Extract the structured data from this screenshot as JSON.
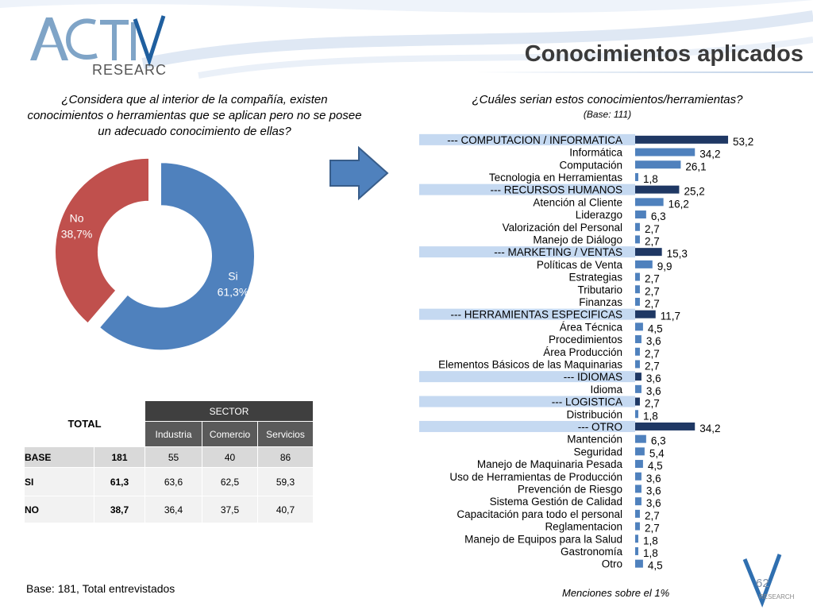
{
  "slide": {
    "title": "Conocimientos aplicados",
    "logo_word_main": "ACTIVA",
    "logo_word_sub": "RESEARCH",
    "page_number": "62",
    "mini_logo_text": "RESEARCH"
  },
  "left_question": {
    "text": "¿Considera que al interior de la compañía, existen conocimientos o herramientas que se aplican pero no se posee un adecuado conocimiento de ellas?"
  },
  "right_question": {
    "text": "¿Cuáles serian estos conocimientos/herramientas?",
    "base": "(Base: 111)"
  },
  "colors": {
    "si": "#4f81bd",
    "no": "#c0504d",
    "bar_dark": "#1f3864",
    "bar_light": "#4f81bd",
    "category_band": "#c5d9f1",
    "arrow_fill": "#4f81bd",
    "arrow_stroke": "#385d8a"
  },
  "table": {
    "total_label": "TOTAL",
    "sector_label": "SECTOR",
    "columns": [
      "Industria",
      "Comercio",
      "Servicios"
    ],
    "rows": [
      {
        "label": "BASE",
        "total": "181",
        "values": [
          "55",
          "40",
          "86"
        ]
      },
      {
        "label": "SI",
        "total": "61,3",
        "values": [
          "63,6",
          "62,5",
          "59,3"
        ]
      },
      {
        "label": "NO",
        "total": "38,7",
        "values": [
          "36,4",
          "37,5",
          "40,7"
        ]
      }
    ]
  },
  "footnotes": {
    "left": "Base: 181, Total entrevistados",
    "right": "Menciones sobre el 1%"
  },
  "chart_data": [
    {
      "type": "pie",
      "variant": "donut",
      "slices": [
        {
          "name": "Si",
          "value": 61.3,
          "label": "61,3%"
        },
        {
          "name": "No",
          "value": 38.7,
          "label": "38,7%"
        }
      ]
    },
    {
      "type": "bar",
      "orientation": "horizontal",
      "categories": [
        {
          "label": "--- COMPUTACION / INFORMATICA",
          "value": 53.2,
          "display": "53,2",
          "category": true
        },
        {
          "label": "Informática",
          "value": 34.2,
          "display": "34,2",
          "category": false
        },
        {
          "label": "Computación",
          "value": 26.1,
          "display": "26,1",
          "category": false
        },
        {
          "label": "Tecnologia en Herramientas",
          "value": 1.8,
          "display": "1,8",
          "category": false
        },
        {
          "label": "--- RECURSOS HUMANOS",
          "value": 25.2,
          "display": "25,2",
          "category": true
        },
        {
          "label": "Atención al Cliente",
          "value": 16.2,
          "display": "16,2",
          "category": false
        },
        {
          "label": "Liderazgo",
          "value": 6.3,
          "display": "6,3",
          "category": false
        },
        {
          "label": "Valorización del Personal",
          "value": 2.7,
          "display": "2,7",
          "category": false
        },
        {
          "label": "Manejo de Diálogo",
          "value": 2.7,
          "display": "2,7",
          "category": false
        },
        {
          "label": "--- MARKETING / VENTAS",
          "value": 15.3,
          "display": "15,3",
          "category": true
        },
        {
          "label": "Políticas de Venta",
          "value": 9.9,
          "display": "9,9",
          "category": false
        },
        {
          "label": "Estrategias",
          "value": 2.7,
          "display": "2,7",
          "category": false
        },
        {
          "label": "Tributario",
          "value": 2.7,
          "display": "2,7",
          "category": false
        },
        {
          "label": "Finanzas",
          "value": 2.7,
          "display": "2,7",
          "category": false
        },
        {
          "label": "--- HERRAMIENTAS ESPECIFICAS",
          "value": 11.7,
          "display": "11,7",
          "category": true
        },
        {
          "label": "Área Técnica",
          "value": 4.5,
          "display": "4,5",
          "category": false
        },
        {
          "label": "Procedimientos",
          "value": 3.6,
          "display": "3,6",
          "category": false
        },
        {
          "label": "Área Producción",
          "value": 2.7,
          "display": "2,7",
          "category": false
        },
        {
          "label": "Elementos Básicos de las Maquinarias",
          "value": 2.7,
          "display": "2,7",
          "category": false
        },
        {
          "label": "--- IDIOMAS",
          "value": 3.6,
          "display": "3,6",
          "category": true
        },
        {
          "label": "Idioma",
          "value": 3.6,
          "display": "3,6",
          "category": false
        },
        {
          "label": "--- LOGISTICA",
          "value": 2.7,
          "display": "2,7",
          "category": true
        },
        {
          "label": "Distribución",
          "value": 1.8,
          "display": "1,8",
          "category": false
        },
        {
          "label": "--- OTRO",
          "value": 34.2,
          "display": "34,2",
          "category": true
        },
        {
          "label": "Mantención",
          "value": 6.3,
          "display": "6,3",
          "category": false
        },
        {
          "label": "Seguridad",
          "value": 5.4,
          "display": "5,4",
          "category": false
        },
        {
          "label": "Manejo de Maquinaria Pesada",
          "value": 4.5,
          "display": "4,5",
          "category": false
        },
        {
          "label": "Uso de Herramientas de Producción",
          "value": 3.6,
          "display": "3,6",
          "category": false
        },
        {
          "label": "Prevención de Riesgo",
          "value": 3.6,
          "display": "3,6",
          "category": false
        },
        {
          "label": "Sistema Gestión de Calidad",
          "value": 3.6,
          "display": "3,6",
          "category": false
        },
        {
          "label": "Capacitación para todo el personal",
          "value": 2.7,
          "display": "2,7",
          "category": false
        },
        {
          "label": "Reglamentacion",
          "value": 2.7,
          "display": "2,7",
          "category": false
        },
        {
          "label": "Manejo de Equipos para la Salud",
          "value": 1.8,
          "display": "1,8",
          "category": false
        },
        {
          "label": "Gastronomía",
          "value": 1.8,
          "display": "1,8",
          "category": false
        },
        {
          "label": "Otro",
          "value": 4.5,
          "display": "4,5",
          "category": false
        }
      ],
      "xlim": [
        0,
        60
      ]
    }
  ]
}
